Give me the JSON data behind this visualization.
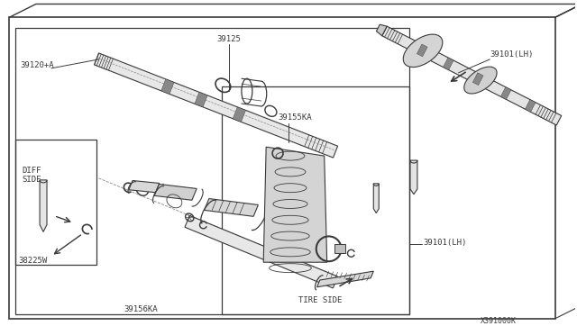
{
  "bg_color": "#ffffff",
  "lc": "#3a3a3a",
  "lw": 0.8,
  "fs": 6.5,
  "labels": {
    "39120A": "39120+A",
    "39125": "39125",
    "39155KA": "39155KA",
    "39156KA": "39156KA",
    "38225W": "38225W",
    "39101LH_t": "39101(LH)",
    "39101LH_b": "39101(LH)",
    "DIFF": "DIFF\nSIDE",
    "TIRE": "TIRE SIDE",
    "ref": "X391000K"
  }
}
